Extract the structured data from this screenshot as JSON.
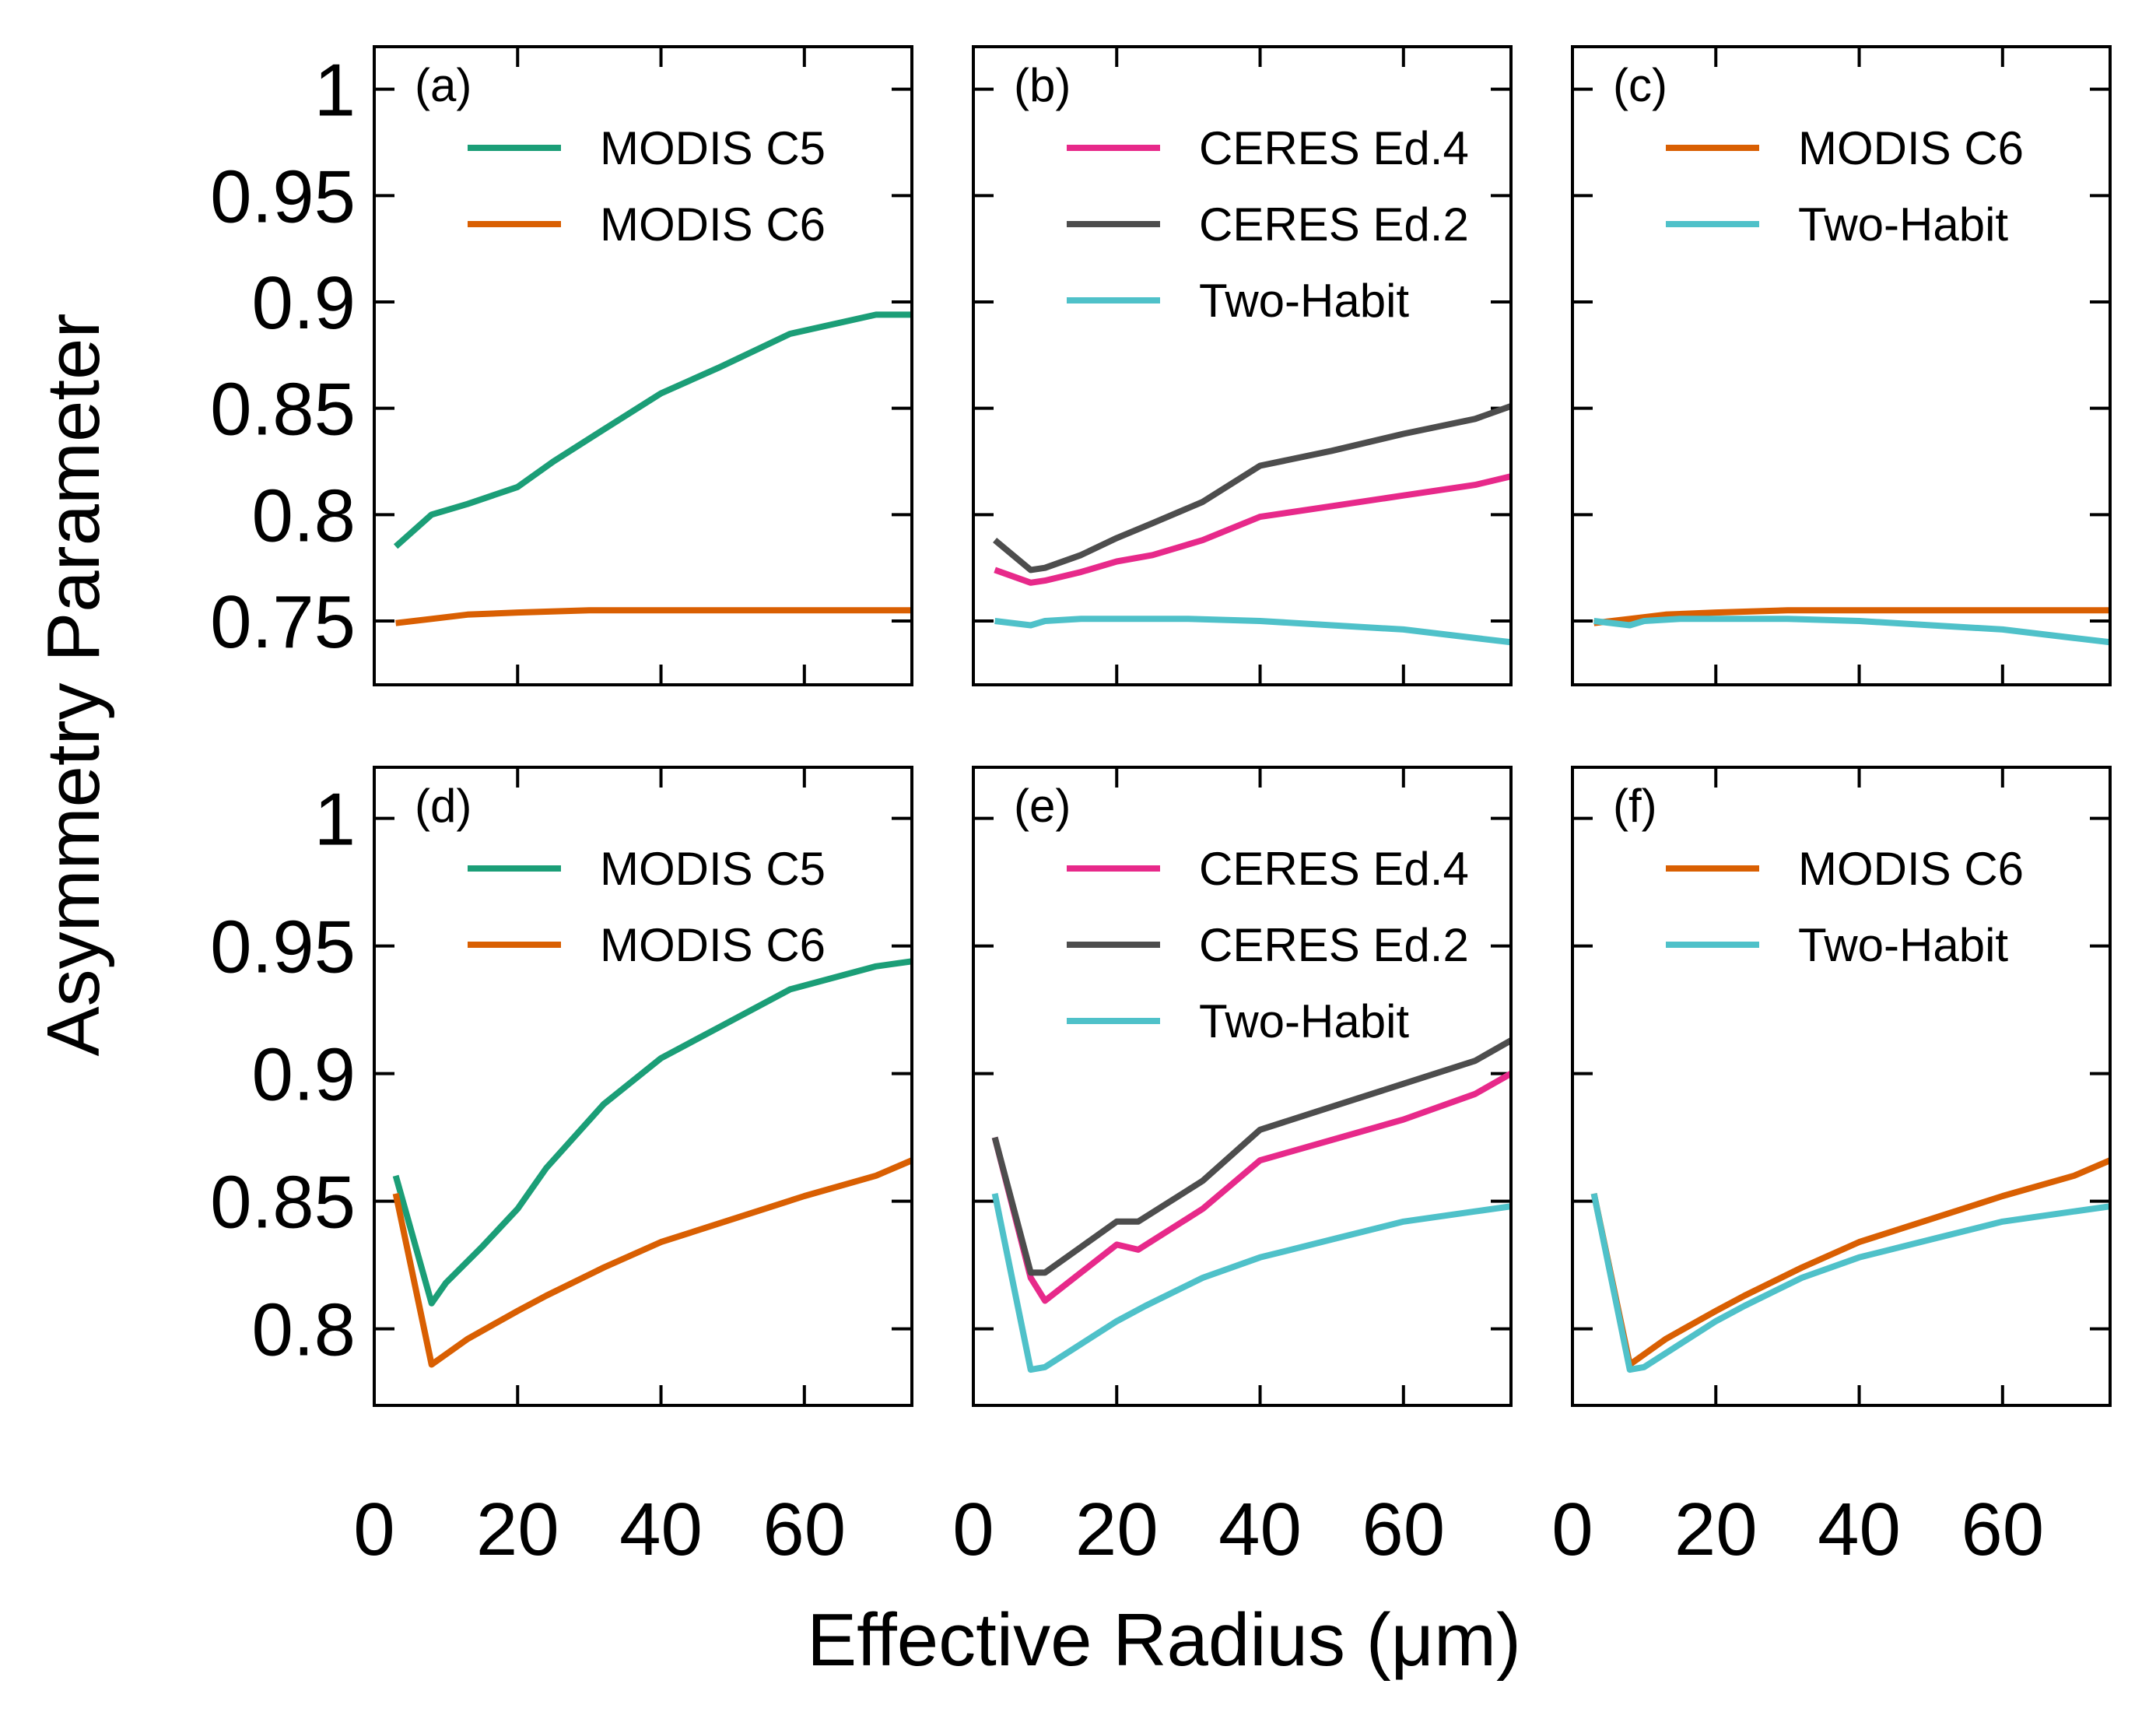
{
  "figure": {
    "xlabel": "Effective Radius (μm)",
    "ylabel": "Asymmetry Parameter"
  },
  "colors": {
    "MODIS C5": "#1b9e77",
    "MODIS C6": "#d95f02",
    "CERES Ed.4": "#e7298a",
    "CERES Ed.2": "#4d4d4d",
    "Two-Habit": "#4fc1c9"
  },
  "chart_data": [
    {
      "type": "line",
      "panel": "(a)",
      "xlim": [
        0,
        75
      ],
      "ylim": [
        0.72,
        1.02
      ],
      "yticks": [
        0.75,
        0.8,
        0.85,
        0.9,
        0.95,
        1
      ],
      "yticklabels": [
        "0.75",
        "0.8",
        "0.85",
        "0.9",
        "0.95",
        "1"
      ],
      "xticks": [
        0,
        20,
        40,
        60
      ],
      "xticklabels": [
        "0",
        "20",
        "40",
        "60"
      ],
      "series": [
        {
          "name": "MODIS C5",
          "x": [
            3,
            8,
            13,
            20,
            25,
            32,
            40,
            48,
            58,
            70,
            75
          ],
          "values": [
            0.785,
            0.8,
            0.805,
            0.813,
            0.825,
            0.84,
            0.857,
            0.869,
            0.885,
            0.894,
            0.894
          ]
        },
        {
          "name": "MODIS C6",
          "x": [
            3,
            8,
            13,
            20,
            30,
            40,
            50,
            60,
            75
          ],
          "values": [
            0.749,
            0.751,
            0.753,
            0.754,
            0.755,
            0.755,
            0.755,
            0.755,
            0.755
          ]
        }
      ]
    },
    {
      "type": "line",
      "panel": "(b)",
      "xlim": [
        0,
        75
      ],
      "ylim": [
        0.72,
        1.02
      ],
      "yticks": [
        0.75,
        0.8,
        0.85,
        0.9,
        0.95,
        1
      ],
      "xticks": [
        0,
        20,
        40,
        60
      ],
      "xticklabels": [
        "0",
        "20",
        "40",
        "60"
      ],
      "series": [
        {
          "name": "CERES Ed.4",
          "x": [
            3,
            8,
            10,
            15,
            20,
            25,
            32,
            40,
            50,
            60,
            70,
            75
          ],
          "values": [
            0.774,
            0.768,
            0.769,
            0.773,
            0.778,
            0.781,
            0.788,
            0.799,
            0.804,
            0.809,
            0.814,
            0.818
          ]
        },
        {
          "name": "CERES Ed.2",
          "x": [
            3,
            8,
            10,
            15,
            20,
            25,
            32,
            40,
            50,
            60,
            70,
            75
          ],
          "values": [
            0.788,
            0.774,
            0.775,
            0.781,
            0.789,
            0.796,
            0.806,
            0.823,
            0.83,
            0.838,
            0.845,
            0.851
          ]
        },
        {
          "name": "Two-Habit",
          "x": [
            3,
            8,
            10,
            15,
            20,
            30,
            40,
            50,
            60,
            70,
            75
          ],
          "values": [
            0.75,
            0.748,
            0.75,
            0.751,
            0.751,
            0.751,
            0.75,
            0.748,
            0.746,
            0.742,
            0.74
          ]
        }
      ]
    },
    {
      "type": "line",
      "panel": "(c)",
      "xlim": [
        0,
        75
      ],
      "ylim": [
        0.72,
        1.02
      ],
      "yticks": [
        0.75,
        0.8,
        0.85,
        0.9,
        0.95,
        1
      ],
      "xticks": [
        0,
        20,
        40,
        60
      ],
      "xticklabels": [
        "0",
        "20",
        "40",
        "60"
      ],
      "series": [
        {
          "name": "MODIS C6",
          "x": [
            3,
            8,
            13,
            20,
            30,
            40,
            50,
            60,
            75
          ],
          "values": [
            0.749,
            0.751,
            0.753,
            0.754,
            0.755,
            0.755,
            0.755,
            0.755,
            0.755
          ]
        },
        {
          "name": "Two-Habit",
          "x": [
            3,
            8,
            10,
            15,
            20,
            30,
            40,
            50,
            60,
            70,
            75
          ],
          "values": [
            0.75,
            0.748,
            0.75,
            0.751,
            0.751,
            0.751,
            0.75,
            0.748,
            0.746,
            0.742,
            0.74
          ]
        }
      ]
    },
    {
      "type": "line",
      "panel": "(d)",
      "xlim": [
        0,
        75
      ],
      "ylim": [
        0.77,
        1.02
      ],
      "yticks": [
        0.8,
        0.85,
        0.9,
        0.95,
        1
      ],
      "yticklabels": [
        "0.8",
        "0.85",
        "0.9",
        "0.95",
        "1"
      ],
      "xticks": [
        0,
        20,
        40,
        60
      ],
      "xticklabels": [
        "0",
        "20",
        "40",
        "60"
      ],
      "series": [
        {
          "name": "MODIS C5",
          "x": [
            3,
            8,
            10,
            15,
            20,
            24,
            32,
            40,
            48,
            58,
            70,
            75
          ],
          "values": [
            0.86,
            0.81,
            0.818,
            0.832,
            0.847,
            0.863,
            0.888,
            0.906,
            0.918,
            0.933,
            0.942,
            0.944
          ]
        },
        {
          "name": "MODIS C6",
          "x": [
            3,
            8,
            13,
            20,
            24,
            32,
            40,
            50,
            60,
            70,
            75
          ],
          "values": [
            0.853,
            0.786,
            0.796,
            0.807,
            0.813,
            0.824,
            0.834,
            0.843,
            0.852,
            0.86,
            0.866
          ]
        }
      ]
    },
    {
      "type": "line",
      "panel": "(e)",
      "xlim": [
        0,
        75
      ],
      "ylim": [
        0.77,
        1.02
      ],
      "yticks": [
        0.8,
        0.85,
        0.9,
        0.95,
        1
      ],
      "xticks": [
        0,
        20,
        40,
        60
      ],
      "xticklabels": [
        "0",
        "20",
        "40",
        "60"
      ],
      "series": [
        {
          "name": "CERES Ed.4",
          "x": [
            3,
            8,
            10,
            15,
            20,
            23,
            32,
            40,
            50,
            60,
            70,
            75
          ],
          "values": [
            0.875,
            0.82,
            0.811,
            0.822,
            0.833,
            0.831,
            0.847,
            0.866,
            0.874,
            0.882,
            0.892,
            0.9
          ]
        },
        {
          "name": "CERES Ed.2",
          "x": [
            3,
            8,
            10,
            15,
            20,
            23,
            32,
            40,
            50,
            60,
            70,
            75
          ],
          "values": [
            0.875,
            0.822,
            0.822,
            0.832,
            0.842,
            0.842,
            0.858,
            0.878,
            0.887,
            0.896,
            0.905,
            0.913
          ]
        },
        {
          "name": "Two-Habit",
          "x": [
            3,
            8,
            10,
            15,
            20,
            24,
            32,
            40,
            50,
            60,
            70,
            75
          ],
          "values": [
            0.853,
            0.784,
            0.785,
            0.794,
            0.803,
            0.809,
            0.82,
            0.828,
            0.835,
            0.842,
            0.846,
            0.848
          ]
        }
      ]
    },
    {
      "type": "line",
      "panel": "(f)",
      "xlim": [
        0,
        75
      ],
      "ylim": [
        0.77,
        1.02
      ],
      "yticks": [
        0.8,
        0.85,
        0.9,
        0.95,
        1
      ],
      "xticks": [
        0,
        20,
        40,
        60
      ],
      "xticklabels": [
        "0",
        "20",
        "40",
        "60"
      ],
      "series": [
        {
          "name": "MODIS C6",
          "x": [
            3,
            8,
            13,
            20,
            24,
            32,
            40,
            50,
            60,
            70,
            75
          ],
          "values": [
            0.853,
            0.786,
            0.796,
            0.807,
            0.813,
            0.824,
            0.834,
            0.843,
            0.852,
            0.86,
            0.866
          ]
        },
        {
          "name": "Two-Habit",
          "x": [
            3,
            8,
            10,
            15,
            20,
            24,
            32,
            40,
            50,
            60,
            70,
            75
          ],
          "values": [
            0.853,
            0.784,
            0.785,
            0.794,
            0.803,
            0.809,
            0.82,
            0.828,
            0.835,
            0.842,
            0.846,
            0.848
          ]
        }
      ]
    }
  ]
}
